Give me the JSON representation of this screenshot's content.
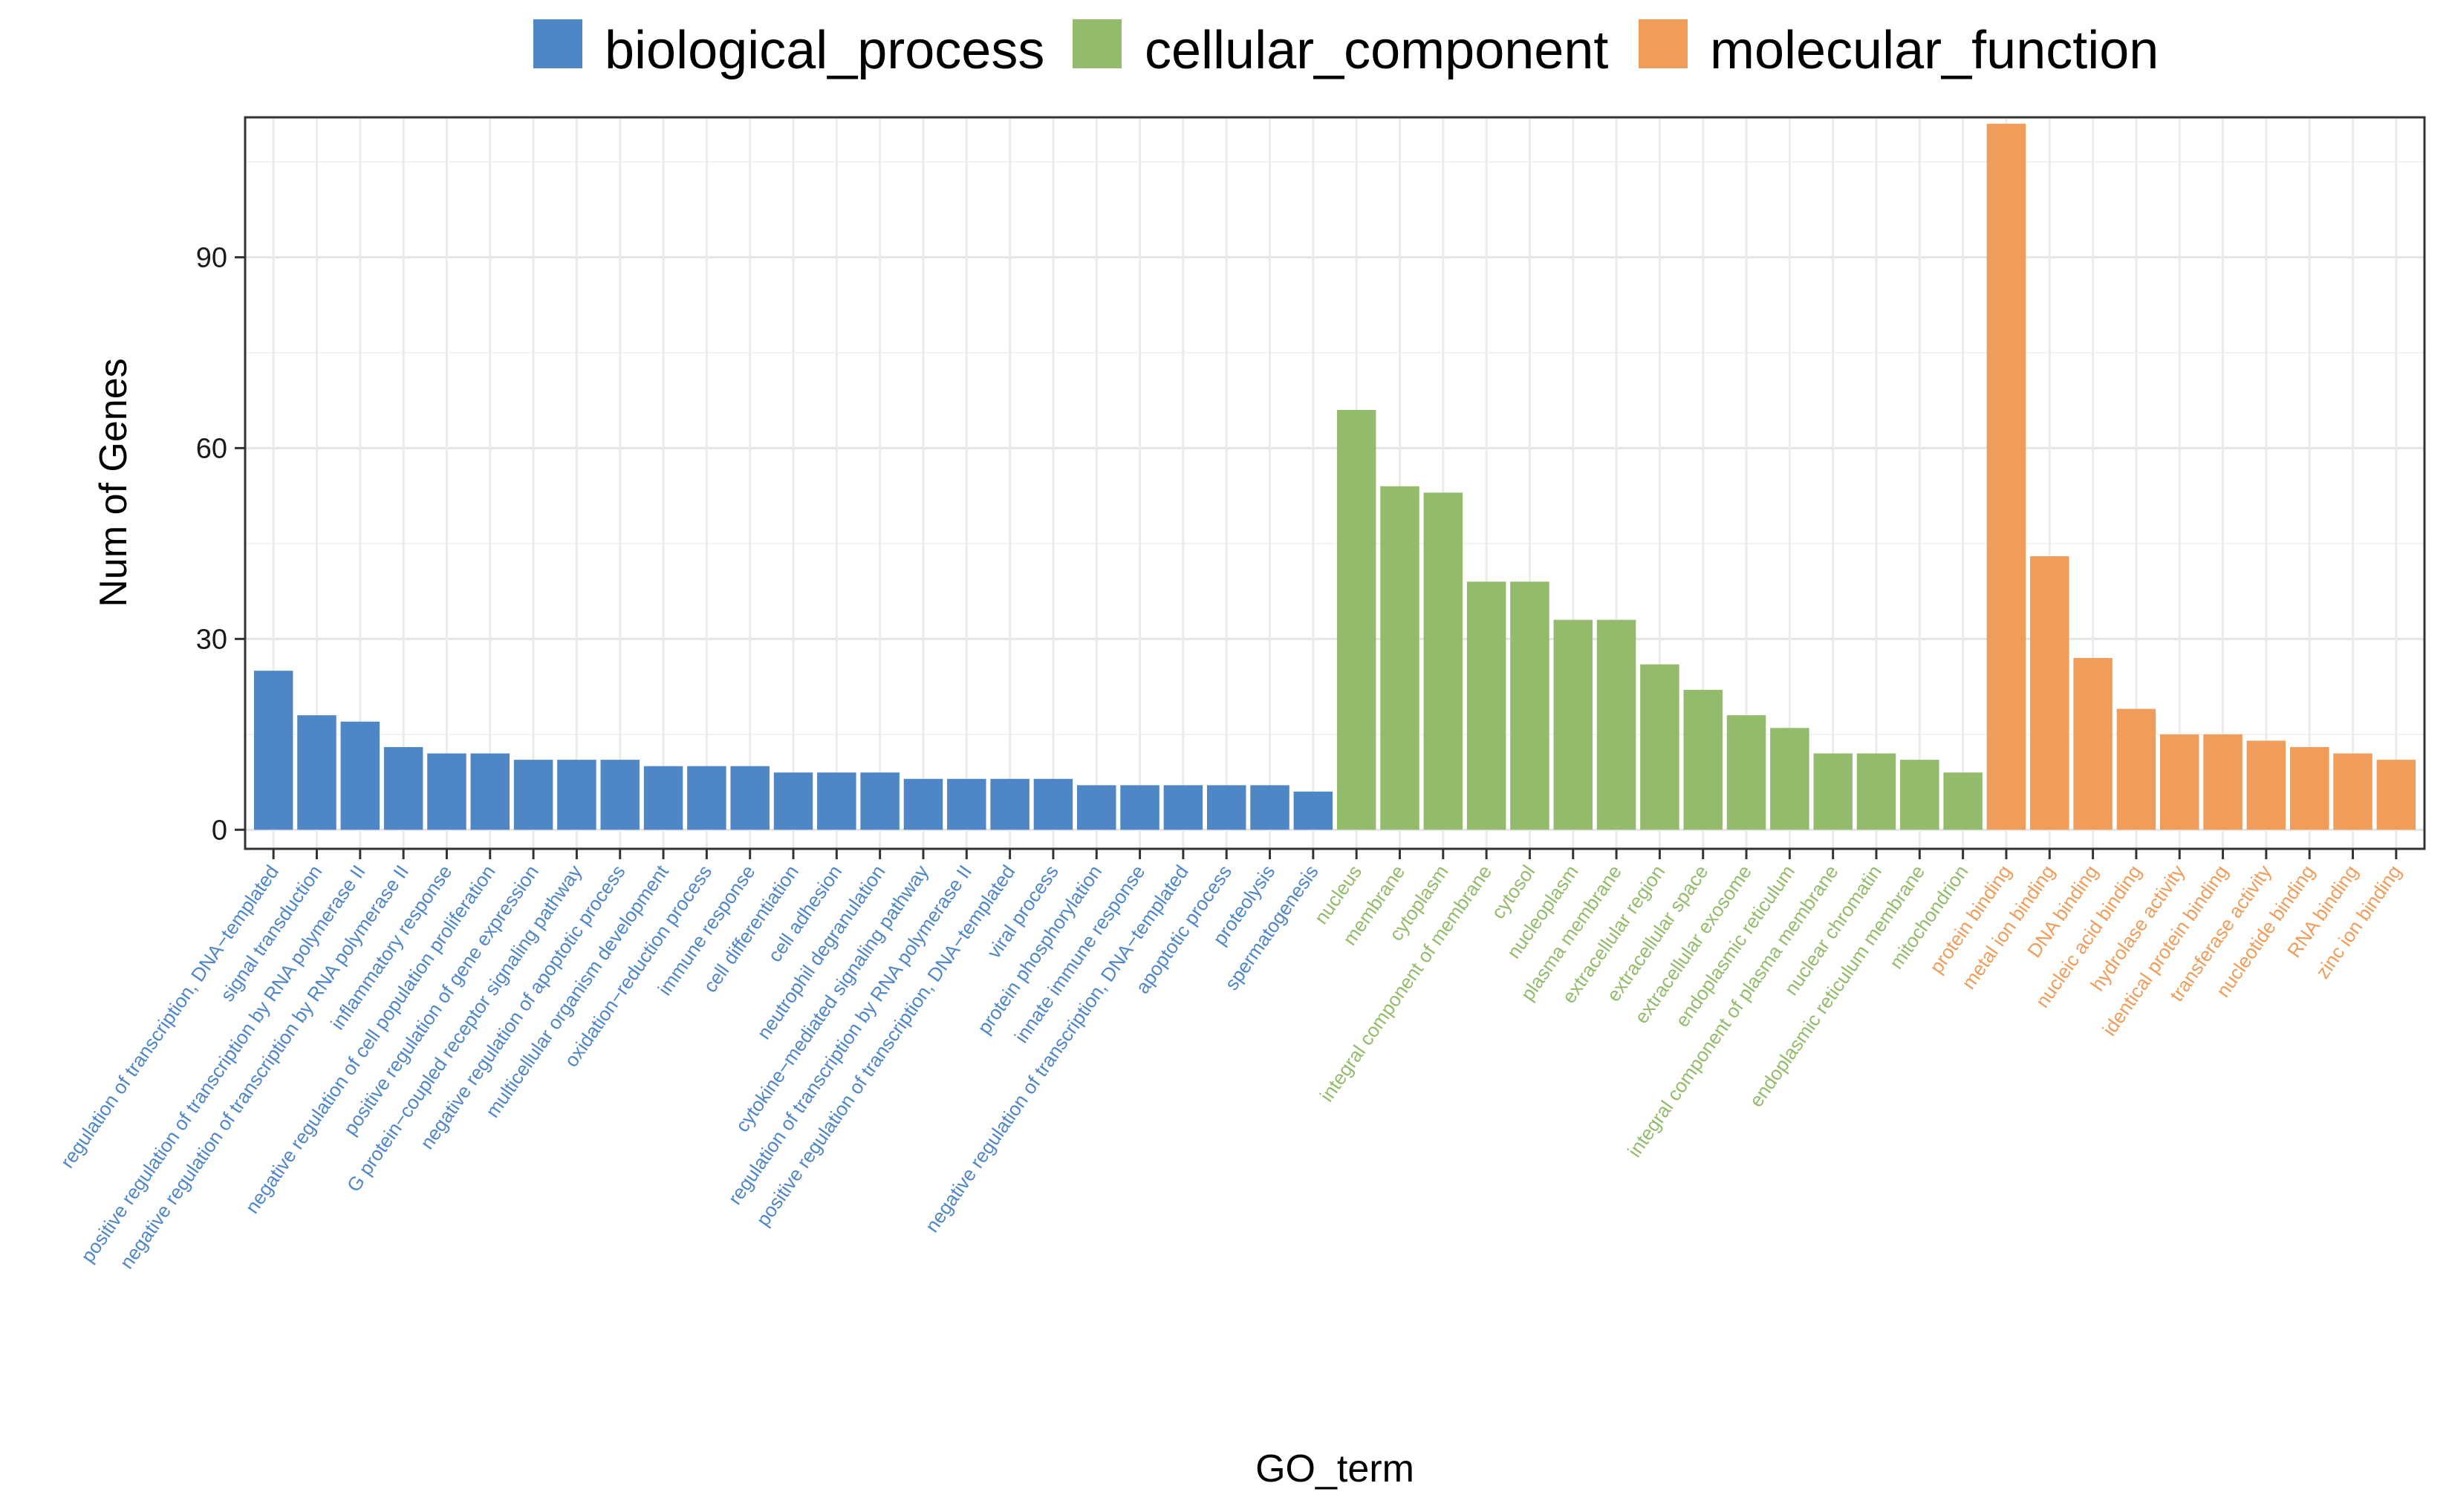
{
  "chart_data": {
    "type": "bar",
    "xlabel": "GO_term",
    "ylabel": "Num of Genes",
    "ylim": [
      -3,
      112
    ],
    "yticks": [
      0,
      30,
      60,
      90
    ],
    "grid": true,
    "legend_position": "top",
    "colors": {
      "biological_process": "#4f86c6",
      "cellular_component": "#93bb6b",
      "molecular_function": "#f09c5a"
    },
    "series": [
      {
        "name": "biological_process",
        "categories": [
          "regulation of transcription, DNA−templated",
          "signal transduction",
          "positive regulation of transcription by RNA polymerase II",
          "negative regulation of transcription by RNA polymerase II",
          "inflammatory response",
          "negative regulation of cell population proliferation",
          "positive regulation of gene expression",
          "G protein−coupled receptor signaling pathway",
          "negative regulation of apoptotic process",
          "multicellular organism development",
          "oxidation−reduction process",
          "immune response",
          "cell differentiation",
          "cell adhesion",
          "neutrophil degranulation",
          "cytokine−mediated signaling pathway",
          "regulation of transcription by RNA polymerase II",
          "positive regulation of transcription, DNA−templated",
          "viral process",
          "protein phosphorylation",
          "innate immune response",
          "negative regulation of transcription, DNA−templated",
          "apoptotic process",
          "proteolysis",
          "spermatogenesis"
        ],
        "values": [
          25,
          18,
          17,
          13,
          12,
          12,
          11,
          11,
          11,
          10,
          10,
          10,
          9,
          9,
          9,
          8,
          8,
          8,
          8,
          7,
          7,
          7,
          7,
          7,
          6
        ]
      },
      {
        "name": "cellular_component",
        "categories": [
          "nucleus",
          "membrane",
          "cytoplasm",
          "integral component of membrane",
          "cytosol",
          "nucleoplasm",
          "plasma membrane",
          "extracellular region",
          "extracellular space",
          "extracellular exosome",
          "endoplasmic reticulum",
          "integral component of plasma membrane",
          "nuclear chromatin",
          "endoplasmic reticulum membrane",
          "mitochondrion"
        ],
        "values": [
          66,
          54,
          53,
          39,
          39,
          33,
          33,
          26,
          22,
          18,
          16,
          12,
          12,
          11,
          9
        ]
      },
      {
        "name": "molecular_function",
        "categories": [
          "protein binding",
          "metal ion binding",
          "DNA binding",
          "nucleic acid binding",
          "hydrolase activity",
          "identical protein binding",
          "transferase activity",
          "nucleotide binding",
          "RNA binding",
          "zinc ion binding"
        ],
        "values": [
          111,
          43,
          27,
          19,
          15,
          15,
          14,
          13,
          12,
          11
        ]
      }
    ]
  }
}
